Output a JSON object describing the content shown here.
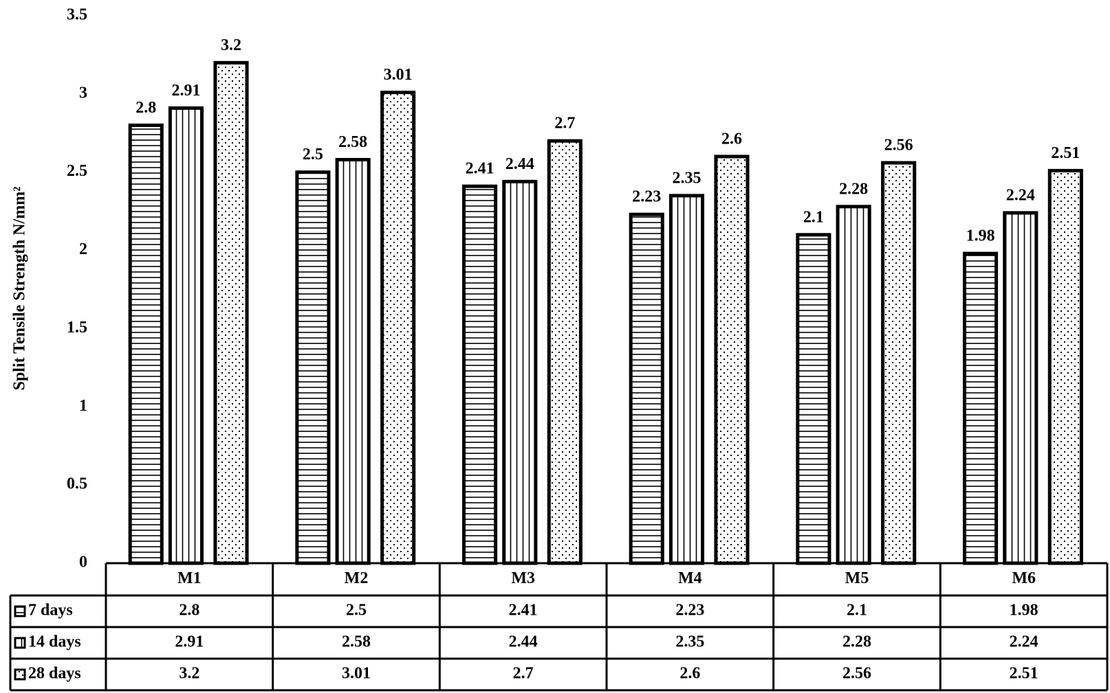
{
  "chart_data": {
    "type": "bar",
    "ylabel": "Split Tensile Strength N/mm²",
    "categories": [
      "M1",
      "M2",
      "M3",
      "M4",
      "M5",
      "M6"
    ],
    "series": [
      {
        "name": "7 days",
        "color": "#000000",
        "pattern": "horizontal",
        "values": [
          2.8,
          2.5,
          2.41,
          2.23,
          2.1,
          1.98
        ]
      },
      {
        "name": "14 days",
        "color": "#000000",
        "pattern": "vertical",
        "values": [
          2.91,
          2.58,
          2.44,
          2.35,
          2.28,
          2.24
        ]
      },
      {
        "name": "28 days",
        "color": "#000000",
        "pattern": "dots",
        "values": [
          3.2,
          3.01,
          2.7,
          2.6,
          2.56,
          2.51
        ]
      }
    ],
    "ylim": [
      0,
      3.5
    ],
    "yticks": [
      0,
      0.5,
      1,
      1.5,
      2,
      2.5,
      3,
      3.5
    ],
    "grid": false,
    "data_table": true
  }
}
